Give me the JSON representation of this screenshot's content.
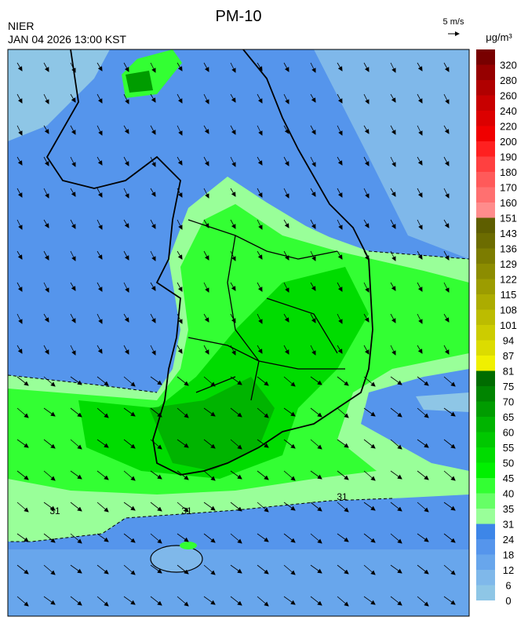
{
  "header": {
    "title": "PM-10",
    "agency": "NIER",
    "datetime": "JAN 04 2026 13:00 KST",
    "wind_scale": "5 m/s",
    "unit": "μg/m³"
  },
  "colorbar": {
    "levels": [
      0,
      6,
      12,
      18,
      24,
      31,
      35,
      40,
      45,
      50,
      55,
      60,
      65,
      70,
      75,
      81,
      87,
      94,
      101,
      108,
      115,
      122,
      129,
      136,
      143,
      151,
      160,
      170,
      180,
      190,
      200,
      220,
      240,
      260,
      280,
      320
    ],
    "colors": [
      "#8ec6e6",
      "#7fb8ea",
      "#68a6ec",
      "#5595ec",
      "#3d86e8",
      "#99ff99",
      "#66ff66",
      "#33ff33",
      "#00f000",
      "#00dc00",
      "#00c800",
      "#00b400",
      "#009c00",
      "#008400",
      "#006c00",
      "#f0f000",
      "#dcdc00",
      "#cccc00",
      "#bcbc00",
      "#acac00",
      "#9c9c00",
      "#8c8c00",
      "#7c7c00",
      "#6c6c00",
      "#5e5e00",
      "#ff8c8c",
      "#ff7070",
      "#ff5a5a",
      "#ff4040",
      "#ff2020",
      "#f00000",
      "#dc0000",
      "#c80000",
      "#b00000",
      "#960000",
      "#780000"
    ]
  },
  "map": {
    "contour_labels": [
      "31",
      "31",
      "31"
    ]
  }
}
